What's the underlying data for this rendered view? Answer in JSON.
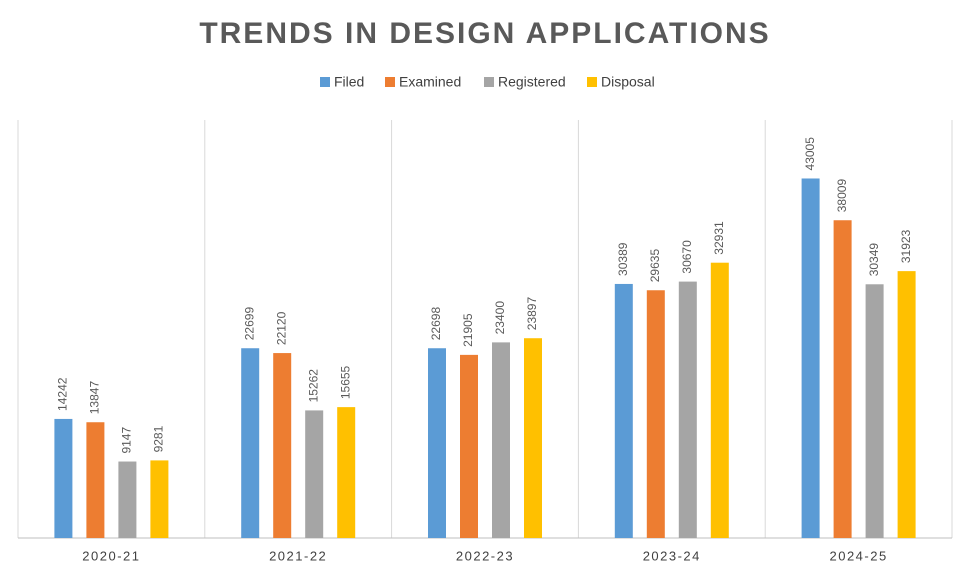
{
  "chart_data": {
    "type": "bar",
    "title": "TRENDS IN DESIGN APPLICATIONS",
    "categories": [
      "2020-21",
      "2021-22",
      "2022-23",
      "2023-24",
      "2024-25"
    ],
    "series": [
      {
        "name": "Filed",
        "color": "#5b9bd5",
        "values": [
          14242,
          22699,
          22698,
          30389,
          43005
        ]
      },
      {
        "name": "Examined",
        "color": "#ed7d31",
        "values": [
          13847,
          22120,
          21905,
          29635,
          38009
        ]
      },
      {
        "name": "Registered",
        "color": "#a5a5a5",
        "values": [
          9147,
          15262,
          23400,
          30670,
          30349
        ]
      },
      {
        "name": "Disposal",
        "color": "#ffc000",
        "values": [
          9281,
          15655,
          23897,
          32931,
          31923
        ]
      }
    ],
    "ylim": [
      0,
      50000
    ],
    "legend": "top"
  }
}
